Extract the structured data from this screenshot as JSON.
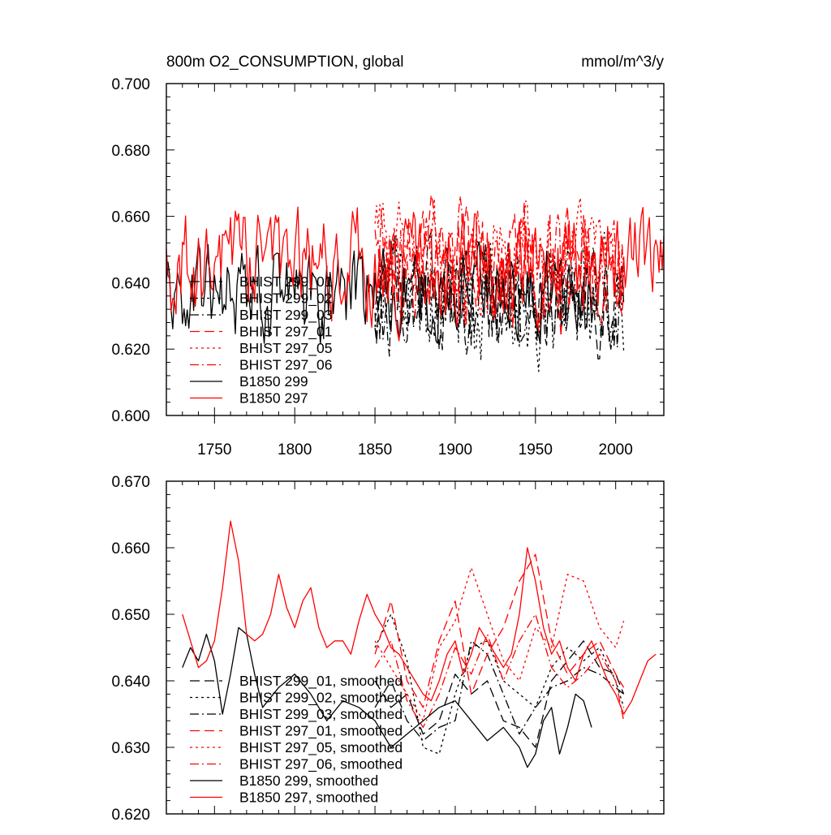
{
  "header": {
    "title": "800m O2_CONSUMPTION, global",
    "units": "mmol/m^3/y"
  },
  "chart_data": [
    {
      "type": "line",
      "panel": "top",
      "title": "800m O2_CONSUMPTION, global",
      "units": "mmol/m^3/y",
      "xlabel": "",
      "ylabel": "",
      "xlim": [
        1720,
        2030
      ],
      "ylim": [
        0.6,
        0.7
      ],
      "x_ticks": [
        1750,
        1800,
        1850,
        1900,
        1950,
        2000
      ],
      "x_tick_labels": [
        "1750",
        "1800",
        "1850",
        "1900",
        "1950",
        "2000"
      ],
      "y_ticks": [
        0.6,
        0.62,
        0.64,
        0.66,
        0.68,
        0.7
      ],
      "y_tick_labels": [
        "0.600",
        "0.620",
        "0.640",
        "0.660",
        "0.680",
        "0.700"
      ],
      "legend_position": "lower-left",
      "series": [
        {
          "name": "BHIST 299_01",
          "color": "#000000",
          "dash": "long-dash",
          "x_range": [
            1850,
            2005
          ],
          "mean": 0.634,
          "amp": 0.011,
          "seed": 11
        },
        {
          "name": "BHIST 299_02",
          "color": "#000000",
          "dash": "dot",
          "x_range": [
            1850,
            2005
          ],
          "mean": 0.633,
          "amp": 0.012,
          "seed": 12
        },
        {
          "name": "BHIST 299_03",
          "color": "#000000",
          "dash": "dash-dot",
          "x_range": [
            1850,
            2005
          ],
          "mean": 0.635,
          "amp": 0.011,
          "seed": 13
        },
        {
          "name": "BHIST 297_01",
          "color": "#ff0000",
          "dash": "long-dash",
          "x_range": [
            1850,
            2005
          ],
          "mean": 0.645,
          "amp": 0.012,
          "seed": 21
        },
        {
          "name": "BHIST 297_05",
          "color": "#ff0000",
          "dash": "dot",
          "x_range": [
            1850,
            2005
          ],
          "mean": 0.646,
          "amp": 0.011,
          "seed": 22
        },
        {
          "name": "BHIST 297_06",
          "color": "#ff0000",
          "dash": "dash-dot",
          "x_range": [
            1850,
            2005
          ],
          "mean": 0.645,
          "amp": 0.012,
          "seed": 23
        },
        {
          "name": "B1850 299",
          "color": "#000000",
          "dash": "solid",
          "x_range": [
            1720,
            1990
          ],
          "mean": 0.637,
          "amp": 0.01,
          "seed": 31
        },
        {
          "name": "B1850 297",
          "color": "#ff0000",
          "dash": "solid",
          "x_range": [
            1720,
            2030
          ],
          "mean": 0.645,
          "amp": 0.011,
          "seed": 32
        }
      ]
    },
    {
      "type": "line",
      "panel": "bottom",
      "title": "",
      "xlabel": "",
      "ylabel": "",
      "xlim": [
        1720,
        2030
      ],
      "ylim": [
        0.62,
        0.67
      ],
      "x_ticks": [
        1750,
        1800,
        1850,
        1900,
        1950,
        2000
      ],
      "y_ticks": [
        0.62,
        0.63,
        0.64,
        0.65,
        0.66,
        0.67
      ],
      "y_tick_labels": [
        "0.620",
        "0.630",
        "0.640",
        "0.650",
        "0.660",
        "0.670"
      ],
      "legend_position": "lower-left",
      "series": [
        {
          "name": "BHIST 299_01, smoothed",
          "color": "#000000",
          "dash": "long-dash",
          "x": [
            1850,
            1860,
            1870,
            1880,
            1890,
            1900,
            1910,
            1920,
            1930,
            1940,
            1950,
            1960,
            1970,
            1980,
            1990,
            2000,
            2005
          ],
          "y": [
            0.64,
            0.636,
            0.638,
            0.632,
            0.634,
            0.641,
            0.638,
            0.64,
            0.634,
            0.633,
            0.63,
            0.64,
            0.643,
            0.646,
            0.642,
            0.641,
            0.638
          ]
        },
        {
          "name": "BHIST 299_02, smoothed",
          "color": "#000000",
          "dash": "dot",
          "x": [
            1850,
            1860,
            1870,
            1880,
            1890,
            1900,
            1910,
            1920,
            1930,
            1940,
            1950,
            1960,
            1970,
            1980,
            1990,
            2000,
            2005
          ],
          "y": [
            0.645,
            0.65,
            0.643,
            0.63,
            0.629,
            0.638,
            0.645,
            0.646,
            0.64,
            0.638,
            0.636,
            0.642,
            0.645,
            0.643,
            0.645,
            0.64,
            0.636
          ]
        },
        {
          "name": "BHIST 299_03, smoothed",
          "color": "#000000",
          "dash": "dash-dot",
          "x": [
            1850,
            1860,
            1870,
            1880,
            1890,
            1900,
            1910,
            1920,
            1930,
            1940,
            1950,
            1960,
            1970,
            1980,
            1990,
            2000,
            2005
          ],
          "y": [
            0.636,
            0.64,
            0.634,
            0.631,
            0.633,
            0.634,
            0.646,
            0.644,
            0.638,
            0.632,
            0.636,
            0.639,
            0.64,
            0.642,
            0.641,
            0.639,
            0.638
          ]
        },
        {
          "name": "BHIST 297_01, smoothed",
          "color": "#ff0000",
          "dash": "long-dash",
          "x": [
            1850,
            1860,
            1870,
            1880,
            1890,
            1900,
            1910,
            1920,
            1930,
            1940,
            1950,
            1960,
            1970,
            1980,
            1990,
            2000,
            2005
          ],
          "y": [
            0.644,
            0.652,
            0.64,
            0.636,
            0.646,
            0.652,
            0.638,
            0.644,
            0.648,
            0.655,
            0.659,
            0.646,
            0.641,
            0.644,
            0.646,
            0.641,
            0.639
          ]
        },
        {
          "name": "BHIST 297_05, smoothed",
          "color": "#ff0000",
          "dash": "dot",
          "x": [
            1850,
            1860,
            1870,
            1880,
            1890,
            1900,
            1910,
            1920,
            1930,
            1940,
            1950,
            1960,
            1970,
            1980,
            1990,
            2000,
            2005
          ],
          "y": [
            0.646,
            0.642,
            0.638,
            0.634,
            0.645,
            0.649,
            0.657,
            0.65,
            0.643,
            0.64,
            0.648,
            0.645,
            0.656,
            0.655,
            0.648,
            0.645,
            0.649
          ]
        },
        {
          "name": "BHIST 297_06, smoothed",
          "color": "#ff0000",
          "dash": "dash-dot",
          "x": [
            1850,
            1860,
            1870,
            1880,
            1890,
            1900,
            1910,
            1920,
            1930,
            1940,
            1950,
            1960,
            1970,
            1980,
            1990,
            2000,
            2005
          ],
          "y": [
            0.642,
            0.646,
            0.637,
            0.633,
            0.638,
            0.645,
            0.641,
            0.647,
            0.64,
            0.646,
            0.65,
            0.642,
            0.639,
            0.641,
            0.644,
            0.64,
            0.634
          ]
        },
        {
          "name": "B1850 299, smoothed",
          "color": "#000000",
          "dash": "solid",
          "x": [
            1730,
            1735,
            1740,
            1745,
            1750,
            1755,
            1760,
            1765,
            1770,
            1775,
            1780,
            1790,
            1800,
            1810,
            1820,
            1830,
            1840,
            1850,
            1860,
            1870,
            1880,
            1890,
            1900,
            1910,
            1920,
            1930,
            1940,
            1945,
            1950,
            1955,
            1960,
            1965,
            1970,
            1975,
            1980,
            1985
          ],
          "y": [
            0.642,
            0.645,
            0.643,
            0.647,
            0.643,
            0.635,
            0.641,
            0.648,
            0.647,
            0.641,
            0.636,
            0.639,
            0.641,
            0.638,
            0.634,
            0.637,
            0.636,
            0.634,
            0.63,
            0.632,
            0.634,
            0.636,
            0.637,
            0.634,
            0.631,
            0.633,
            0.63,
            0.627,
            0.629,
            0.634,
            0.636,
            0.629,
            0.633,
            0.638,
            0.637,
            0.633
          ]
        },
        {
          "name": "B1850 297, smoothed",
          "color": "#ff0000",
          "dash": "solid",
          "x": [
            1730,
            1735,
            1740,
            1745,
            1750,
            1755,
            1760,
            1765,
            1770,
            1775,
            1780,
            1785,
            1790,
            1795,
            1800,
            1805,
            1810,
            1815,
            1820,
            1825,
            1830,
            1835,
            1840,
            1845,
            1850,
            1855,
            1860,
            1865,
            1870,
            1875,
            1880,
            1885,
            1890,
            1895,
            1900,
            1905,
            1910,
            1915,
            1920,
            1925,
            1930,
            1935,
            1940,
            1945,
            1950,
            1955,
            1960,
            1965,
            1970,
            1975,
            1980,
            1985,
            1990,
            1995,
            2000,
            2005,
            2010,
            2015,
            2020,
            2025
          ],
          "y": [
            0.65,
            0.646,
            0.642,
            0.643,
            0.646,
            0.654,
            0.664,
            0.658,
            0.647,
            0.646,
            0.647,
            0.65,
            0.656,
            0.651,
            0.648,
            0.652,
            0.654,
            0.648,
            0.645,
            0.646,
            0.646,
            0.644,
            0.649,
            0.653,
            0.65,
            0.648,
            0.645,
            0.644,
            0.642,
            0.64,
            0.638,
            0.637,
            0.64,
            0.644,
            0.646,
            0.641,
            0.644,
            0.648,
            0.646,
            0.644,
            0.642,
            0.644,
            0.65,
            0.66,
            0.655,
            0.648,
            0.644,
            0.646,
            0.642,
            0.64,
            0.644,
            0.646,
            0.643,
            0.64,
            0.638,
            0.635,
            0.637,
            0.64,
            0.643,
            0.644
          ]
        }
      ]
    }
  ]
}
